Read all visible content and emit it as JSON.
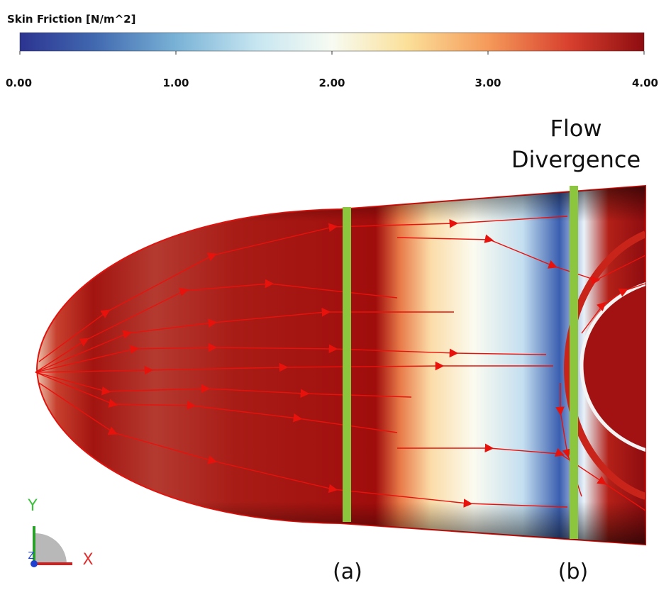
{
  "colorbar": {
    "title": "Skin Friction [N/m^2]",
    "lim": [
      0,
      4
    ],
    "ticks": [
      {
        "value": 0,
        "label": "0.00"
      },
      {
        "value": 1,
        "label": "1.00"
      },
      {
        "value": 2,
        "label": "2.00"
      },
      {
        "value": 3,
        "label": "3.00"
      },
      {
        "value": 4,
        "label": "4.00"
      }
    ]
  },
  "annotations": {
    "flow_divergence": [
      "Flow",
      "Divergence"
    ],
    "section_a": "(a)",
    "section_b": "(b)"
  },
  "axes_triad": {
    "y": "Y",
    "x": "X",
    "z": "Z"
  }
}
